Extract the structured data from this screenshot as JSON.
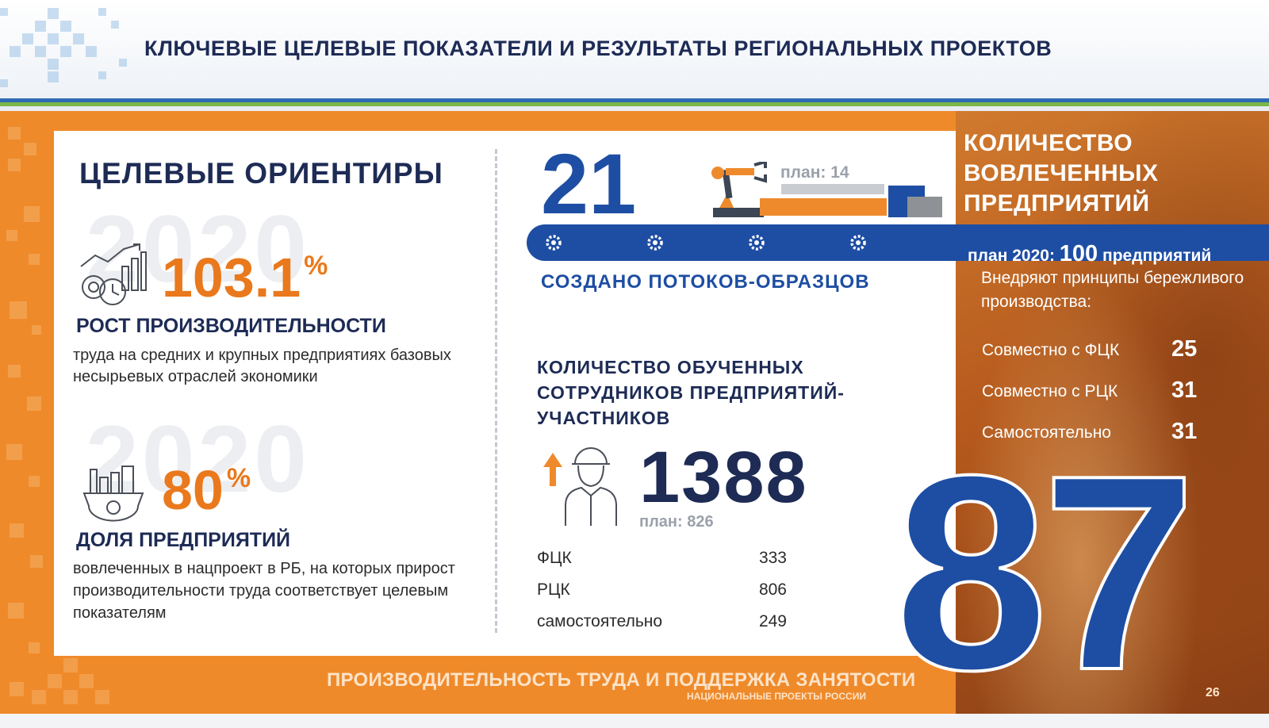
{
  "header": {
    "title": "КЛЮЧЕВЫЕ ЦЕЛЕВЫЕ ПОКАЗАТЕЛИ И РЕЗУЛЬТАТЫ РЕГИОНАЛЬНЫХ ПРОЕКТОВ"
  },
  "targets": {
    "title": "ЦЕЛЕВЫЕ ОРИЕНТИРЫ",
    "year_watermark": "2020",
    "productivity": {
      "icon": "productivity-chart-icon",
      "value": "103.1",
      "unit": "%",
      "label": "РОСТ ПРОИЗВОДИТЕЛЬНОСТИ",
      "description": "труда на средних и крупных предприятиях базовых несырьевых отраслей экономики"
    },
    "share": {
      "icon": "factory-gear-icon",
      "value": "80",
      "unit": "%",
      "label": "ДОЛЯ ПРЕДПРИЯТИЙ",
      "description": "вовлеченных в нацпроект в РБ, на которых прирост производительности труда соответствует целевым показателям"
    }
  },
  "flows": {
    "value": "21",
    "plan": "план: 14",
    "plan_value": 14,
    "label": "СОЗДАНО ПОТОКОВ-ОБРАЗЦОВ",
    "icon": "robot-arm-icon"
  },
  "trained": {
    "title": "КОЛИЧЕСТВО ОБУЧЕННЫХ СОТРУДНИКОВ ПРЕДПРИЯТИЙ-УЧАСТНИКОВ",
    "value": "1388",
    "plan": "план: 826",
    "icon": "worker-icon",
    "breakdown": [
      {
        "name": "ФЦК",
        "value": "333"
      },
      {
        "name": "РЦК",
        "value": "806"
      },
      {
        "name": "самостоятельно",
        "value": "249"
      }
    ]
  },
  "enterprises": {
    "title": "КОЛИЧЕСТВО ВОВЛЕЧЕННЫХ ПРЕДПРИЯТИЙ",
    "plan_prefix": "план 2020: ",
    "plan_value": "100",
    "plan_suffix": " предприятий",
    "lean_text": "Внедряют принципы бережливого производства:",
    "breakdown": [
      {
        "name": "Совместно с ФЦК",
        "value": "25"
      },
      {
        "name": "Совместно с РЦК",
        "value": "31"
      },
      {
        "name": "Самостоятельно",
        "value": "31"
      }
    ],
    "total": "87"
  },
  "footer": {
    "title": "ПРОИЗВОДИТЕЛЬНОСТЬ ТРУДА И ПОДДЕРЖКА ЗАНЯТОСТИ",
    "subtitle": "НАЦИОНАЛЬНЫЕ ПРОЕКТЫ РОССИИ",
    "page_number": "26"
  },
  "colors": {
    "navy": "#1d2b55",
    "blue": "#1e4ea3",
    "orange": "#ef8a2a",
    "accent_orange": "#e9791c",
    "grey": "#9aa1ab"
  }
}
